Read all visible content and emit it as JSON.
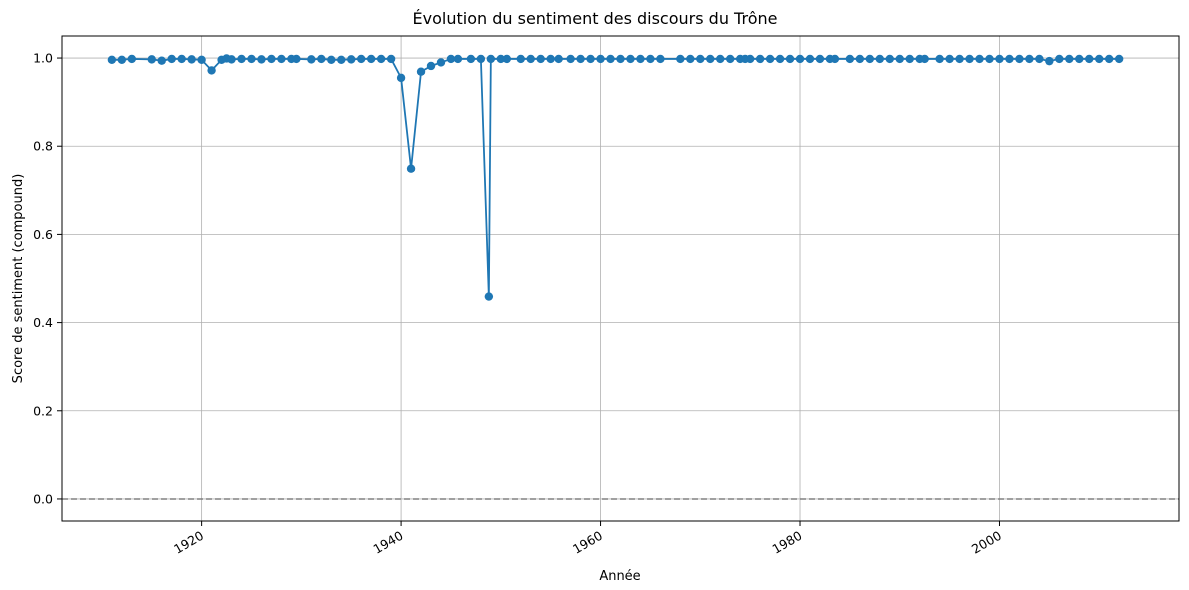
{
  "chart_data": {
    "type": "line",
    "title": "Évolution du sentiment des discours du Trône",
    "xlabel": "Année",
    "ylabel": "Score de sentiment (compound)",
    "xlim": [
      1906,
      2018
    ],
    "ylim": [
      -0.05,
      1.05
    ],
    "grid": true,
    "legend": "none",
    "x_ticks": [
      1920,
      1940,
      1960,
      1980,
      2000
    ],
    "y_ticks": [
      0.0,
      0.2,
      0.4,
      0.6,
      0.8,
      1.0
    ],
    "x_tick_labels": [
      "1920",
      "1940",
      "1960",
      "1980",
      "2000"
    ],
    "y_tick_labels": [
      "0.0",
      "0.2",
      "0.4",
      "0.6",
      "0.8",
      "1.0"
    ],
    "reference_line": {
      "y": 0.0,
      "style": "dashed",
      "color": "#808080"
    },
    "series": [
      {
        "color": "#1f77b4",
        "marker": "circle",
        "points": [
          [
            1911,
            0.996
          ],
          [
            1912,
            0.996
          ],
          [
            1913,
            0.998
          ],
          [
            1915,
            0.997
          ],
          [
            1916,
            0.994
          ],
          [
            1917,
            0.998
          ],
          [
            1918,
            0.998
          ],
          [
            1919,
            0.997
          ],
          [
            1920,
            0.996
          ],
          [
            1921,
            0.972
          ],
          [
            1922,
            0.996
          ],
          [
            1922.5,
            0.999
          ],
          [
            1923,
            0.997
          ],
          [
            1924,
            0.998
          ],
          [
            1925,
            0.998
          ],
          [
            1926,
            0.997
          ],
          [
            1927,
            0.998
          ],
          [
            1928,
            0.998
          ],
          [
            1929,
            0.998
          ],
          [
            1929.5,
            0.998
          ],
          [
            1931,
            0.997
          ],
          [
            1932,
            0.998
          ],
          [
            1933,
            0.996
          ],
          [
            1934,
            0.996
          ],
          [
            1935,
            0.997
          ],
          [
            1936,
            0.998
          ],
          [
            1937,
            0.998
          ],
          [
            1938,
            0.998
          ],
          [
            1939,
            0.998
          ],
          [
            1940,
            0.955
          ],
          [
            1941,
            0.749
          ],
          [
            1942,
            0.969
          ],
          [
            1943,
            0.982
          ],
          [
            1944,
            0.99
          ],
          [
            1945,
            0.998
          ],
          [
            1945.7,
            0.998
          ],
          [
            1947,
            0.998
          ],
          [
            1948,
            0.998
          ],
          [
            1948.8,
            0.459
          ],
          [
            1949,
            0.998
          ],
          [
            1950,
            0.998
          ],
          [
            1950.6,
            0.998
          ],
          [
            1952,
            0.998
          ],
          [
            1953,
            0.998
          ],
          [
            1954,
            0.998
          ],
          [
            1955,
            0.998
          ],
          [
            1955.8,
            0.998
          ],
          [
            1957,
            0.998
          ],
          [
            1958,
            0.998
          ],
          [
            1959,
            0.998
          ],
          [
            1960,
            0.998
          ],
          [
            1961,
            0.998
          ],
          [
            1962,
            0.998
          ],
          [
            1963,
            0.998
          ],
          [
            1964,
            0.998
          ],
          [
            1965,
            0.998
          ],
          [
            1966,
            0.998
          ],
          [
            1968,
            0.998
          ],
          [
            1969,
            0.998
          ],
          [
            1970,
            0.998
          ],
          [
            1971,
            0.998
          ],
          [
            1972,
            0.998
          ],
          [
            1973,
            0.998
          ],
          [
            1974,
            0.998
          ],
          [
            1974.5,
            0.998
          ],
          [
            1975,
            0.998
          ],
          [
            1976,
            0.998
          ],
          [
            1977,
            0.998
          ],
          [
            1978,
            0.998
          ],
          [
            1979,
            0.998
          ],
          [
            1980,
            0.998
          ],
          [
            1981,
            0.998
          ],
          [
            1982,
            0.998
          ],
          [
            1983,
            0.998
          ],
          [
            1983.5,
            0.998
          ],
          [
            1985,
            0.998
          ],
          [
            1986,
            0.998
          ],
          [
            1987,
            0.998
          ],
          [
            1988,
            0.998
          ],
          [
            1989,
            0.998
          ],
          [
            1990,
            0.998
          ],
          [
            1991,
            0.998
          ],
          [
            1992,
            0.998
          ],
          [
            1992.5,
            0.998
          ],
          [
            1994,
            0.998
          ],
          [
            1995,
            0.998
          ],
          [
            1996,
            0.998
          ],
          [
            1997,
            0.998
          ],
          [
            1998,
            0.998
          ],
          [
            1999,
            0.998
          ],
          [
            2000,
            0.998
          ],
          [
            2001,
            0.998
          ],
          [
            2002,
            0.998
          ],
          [
            2003,
            0.998
          ],
          [
            2004,
            0.998
          ],
          [
            2005,
            0.993
          ],
          [
            2006,
            0.998
          ],
          [
            2007,
            0.998
          ],
          [
            2008,
            0.998
          ],
          [
            2009,
            0.998
          ],
          [
            2010,
            0.998
          ],
          [
            2011,
            0.998
          ],
          [
            2012,
            0.998
          ]
        ]
      }
    ]
  }
}
